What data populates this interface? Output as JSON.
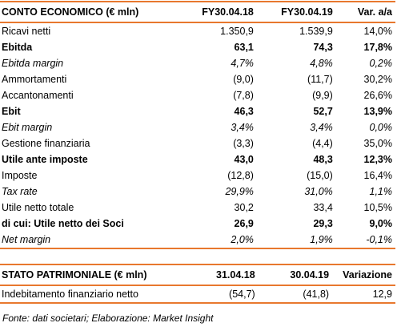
{
  "table1": {
    "header": [
      "CONTO ECONOMICO (€ mln)",
      "FY30.04.18",
      "FY30.04.19",
      "Var. a/a"
    ],
    "rows": [
      [
        "Ricavi netti",
        "1.350,9",
        "1.539,9",
        "14,0%"
      ],
      [
        "Ebitda",
        "63,1",
        "74,3",
        "17,8%"
      ],
      [
        "Ebitda margin",
        "4,7%",
        "4,8%",
        "0,2%"
      ],
      [
        "Ammortamenti",
        "(9,0)",
        "(11,7)",
        "30,2%"
      ],
      [
        "Accantonamenti",
        "(7,8)",
        "(9,9)",
        "26,6%"
      ],
      [
        "Ebit",
        "46,3",
        "52,7",
        "13,9%"
      ],
      [
        "Ebit margin",
        "3,4%",
        "3,4%",
        "0,0%"
      ],
      [
        "Gestione finanziaria",
        "(3,3)",
        "(4,4)",
        "35,0%"
      ],
      [
        "Utile ante imposte",
        "43,0",
        "48,3",
        "12,3%"
      ],
      [
        "Imposte",
        "(12,8)",
        "(15,0)",
        "16,4%"
      ],
      [
        "Tax rate",
        "29,9%",
        "31,0%",
        "1,1%"
      ],
      [
        "Utile netto totale",
        "30,2",
        "33,4",
        "10,5%"
      ],
      [
        "di cui: Utile netto dei Soci",
        "26,9",
        "29,3",
        "9,0%"
      ],
      [
        "Net margin",
        "2,0%",
        "1,9%",
        "-0,1%"
      ]
    ]
  },
  "table2": {
    "header": [
      "STATO PATRIMONIALE (€ mln)",
      "31.04.18",
      "30.04.19",
      "Variazione"
    ],
    "rows": [
      [
        "Indebitamento finanziario netto",
        "(54,7)",
        "(41,8)",
        "12,9"
      ]
    ]
  },
  "footer": "Fonte: dati societari; Elaborazione: Market Insight"
}
